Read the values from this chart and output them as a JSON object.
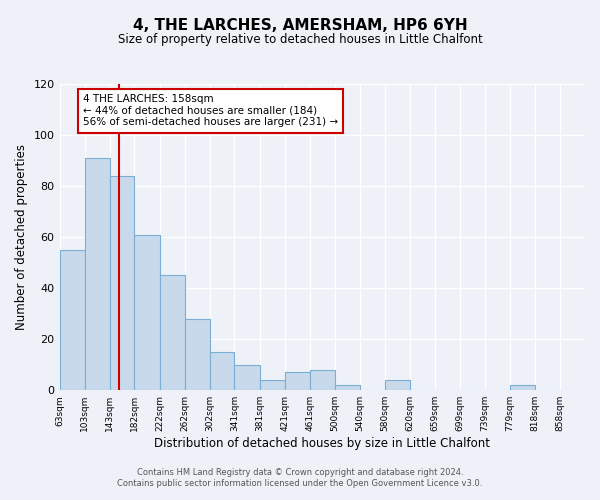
{
  "title": "4, THE LARCHES, AMERSHAM, HP6 6YH",
  "subtitle": "Size of property relative to detached houses in Little Chalfont",
  "xlabel": "Distribution of detached houses by size in Little Chalfont",
  "ylabel": "Number of detached properties",
  "bin_labels": [
    "63sqm",
    "103sqm",
    "143sqm",
    "182sqm",
    "222sqm",
    "262sqm",
    "302sqm",
    "341sqm",
    "381sqm",
    "421sqm",
    "461sqm",
    "500sqm",
    "540sqm",
    "580sqm",
    "620sqm",
    "659sqm",
    "699sqm",
    "739sqm",
    "779sqm",
    "818sqm",
    "858sqm"
  ],
  "bin_edges": [
    63,
    103,
    143,
    182,
    222,
    262,
    302,
    341,
    381,
    421,
    461,
    500,
    540,
    580,
    620,
    659,
    699,
    739,
    779,
    818,
    858
  ],
  "bar_heights": [
    55,
    91,
    84,
    61,
    45,
    28,
    15,
    10,
    4,
    7,
    8,
    2,
    0,
    4,
    0,
    0,
    0,
    0,
    2,
    0,
    0
  ],
  "bar_color": "#c9d9ec",
  "bar_edge_color": "#7aaed4",
  "vline_x": 158,
  "vline_color": "#cc0000",
  "annotation_title": "4 THE LARCHES: 158sqm",
  "annotation_line1": "← 44% of detached houses are smaller (184)",
  "annotation_line2": "56% of semi-detached houses are larger (231) →",
  "annotation_box_color": "#ffffff",
  "annotation_box_edge": "#cc0000",
  "ylim": [
    0,
    120
  ],
  "yticks": [
    0,
    20,
    40,
    60,
    80,
    100,
    120
  ],
  "footnote1": "Contains HM Land Registry data © Crown copyright and database right 2024.",
  "footnote2": "Contains public sector information licensed under the Open Government Licence v3.0.",
  "background_color": "#eef2f8",
  "grid_color": "#ffffff"
}
